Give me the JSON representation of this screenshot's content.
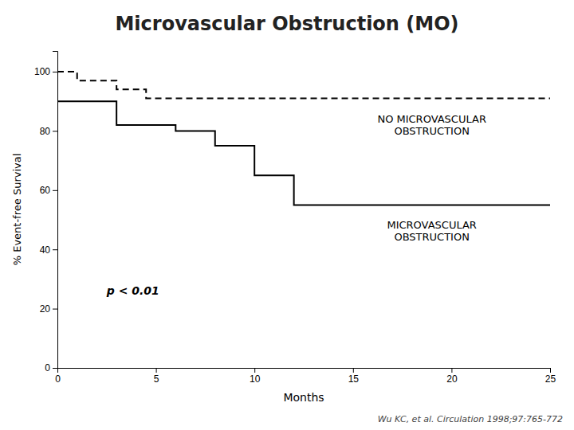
{
  "chart_data": {
    "type": "step",
    "title": "Microvascular Obstruction (MO)",
    "xlabel": "Months",
    "ylabel": "% Event-free Survival",
    "xlim": [
      0,
      25
    ],
    "ylim": [
      0,
      107
    ],
    "xticks": [
      0,
      5,
      10,
      15,
      20,
      25
    ],
    "yticks": [
      0,
      20,
      40,
      60,
      80,
      100
    ],
    "grid": false,
    "series": [
      {
        "color": "#000000",
        "line_style": "dashed",
        "x": [
          0,
          1,
          1,
          3,
          3,
          4.5,
          4.5,
          6,
          6,
          25
        ],
        "values": [
          100,
          100,
          97,
          97,
          94,
          94,
          91,
          91,
          91,
          91
        ]
      },
      {
        "color": "#000000",
        "line_style": "solid",
        "x": [
          0,
          0,
          3,
          3,
          6,
          6,
          8,
          8,
          10,
          10,
          12,
          12,
          25
        ],
        "values": [
          90,
          90,
          90,
          82,
          82,
          80,
          80,
          75,
          75,
          65,
          65,
          55,
          55
        ]
      }
    ],
    "annotations": [
      [
        "NO MICROVASCULAR",
        "OBSTRUCTION"
      ],
      [
        "MICROVASCULAR",
        "OBSTRUCTION"
      ],
      "p < 0.01",
      "Wu KC, et al. Circulation 1998;97:765-772"
    ]
  }
}
